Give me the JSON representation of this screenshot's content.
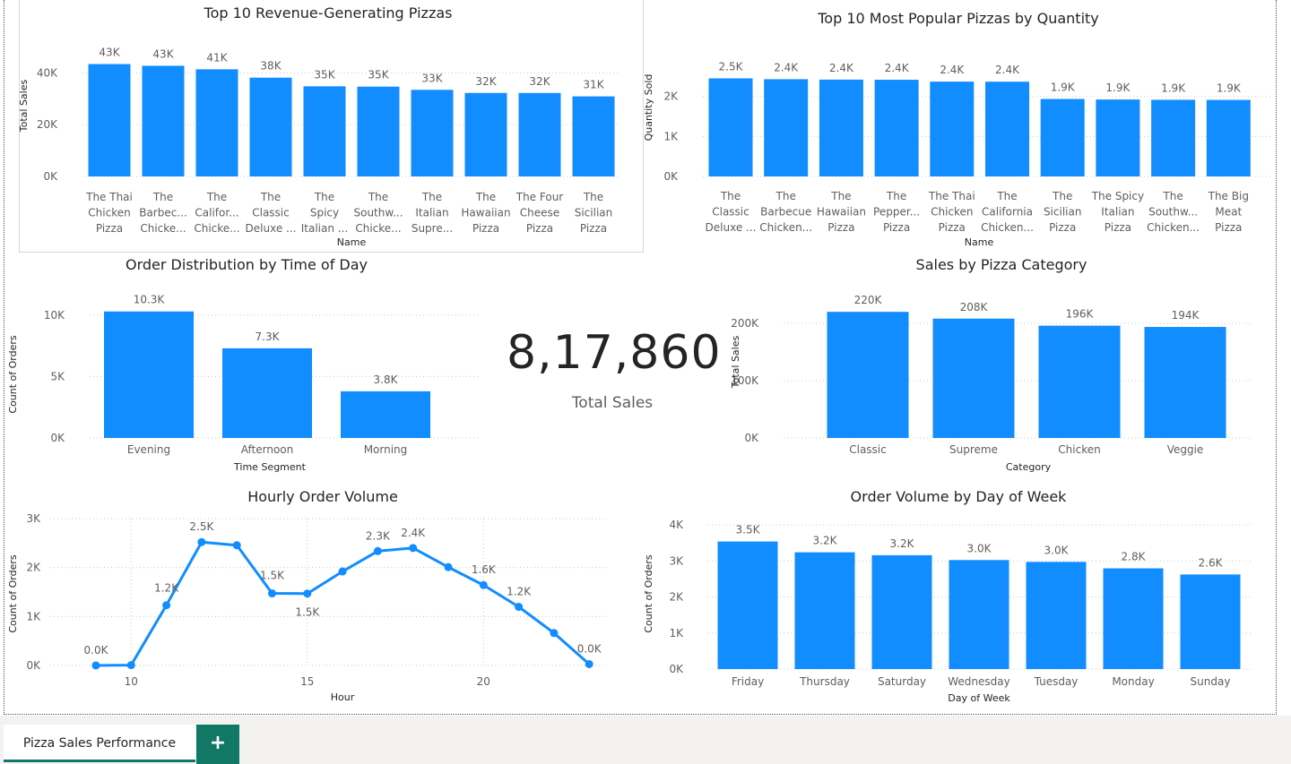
{
  "kpi": {
    "value": "8,17,860",
    "label": "Total Sales"
  },
  "tabs": {
    "active_label": "Pizza Sales Performance",
    "add_label": "+"
  },
  "colors": {
    "bar": "#118DFF",
    "tab_accent": "#117865"
  },
  "chart_data": [
    {
      "id": "revenue",
      "type": "bar",
      "title": "Top 10 Revenue-Generating Pizzas",
      "xlabel": "Name",
      "ylabel": "Total Sales",
      "categories": [
        [
          "The Thai",
          "Chicken",
          "Pizza"
        ],
        [
          "The",
          "Barbec...",
          "Chicke..."
        ],
        [
          "The",
          "Califor...",
          "Chicke..."
        ],
        [
          "The",
          "Classic",
          "Deluxe ..."
        ],
        [
          "The",
          "Spicy",
          "Italian ..."
        ],
        [
          "The",
          "Southw...",
          "Chicke..."
        ],
        [
          "The",
          "Italian",
          "Supre..."
        ],
        [
          "The",
          "Hawaiian",
          "Pizza"
        ],
        [
          "The Four",
          "Cheese",
          "Pizza"
        ],
        [
          "The",
          "Sicilian",
          "Pizza"
        ]
      ],
      "values": [
        43434,
        42768,
        41410,
        38180,
        34831,
        34706,
        33477,
        32273,
        32266,
        30940
      ],
      "labels": [
        "43K",
        "43K",
        "41K",
        "38K",
        "35K",
        "35K",
        "33K",
        "32K",
        "32K",
        "31K"
      ],
      "ylim": [
        0,
        45000
      ],
      "yticks": [
        0,
        20000,
        40000
      ],
      "yticklabels": [
        "0K",
        "20K",
        "40K"
      ]
    },
    {
      "id": "quantity",
      "type": "bar",
      "title": "Top 10 Most Popular Pizzas by Quantity",
      "xlabel": "Name",
      "ylabel": "Quantity Sold",
      "categories": [
        [
          "The",
          "Classic",
          "Deluxe ..."
        ],
        [
          "The",
          "Barbecue",
          "Chicken..."
        ],
        [
          "The",
          "Hawaiian",
          "Pizza"
        ],
        [
          "The",
          "Pepper...",
          "Pizza"
        ],
        [
          "The Thai",
          "Chicken",
          "Pizza"
        ],
        [
          "The",
          "California",
          "Chicken..."
        ],
        [
          "The",
          "Sicilian",
          "Pizza"
        ],
        [
          "The Spicy",
          "Italian",
          "Pizza"
        ],
        [
          "The",
          "Southw...",
          "Chicken..."
        ],
        [
          "The Big",
          "Meat",
          "Pizza"
        ]
      ],
      "values": [
        2453,
        2432,
        2422,
        2418,
        2371,
        2370,
        1938,
        1924,
        1917,
        1914
      ],
      "labels": [
        "2.5K",
        "2.4K",
        "2.4K",
        "2.4K",
        "2.4K",
        "2.4K",
        "1.9K",
        "1.9K",
        "1.9K",
        "1.9K"
      ],
      "ylim": [
        0,
        2800
      ],
      "yticks": [
        0,
        1000,
        2000
      ],
      "yticklabels": [
        "0K",
        "1K",
        "2K"
      ]
    },
    {
      "id": "timeofday",
      "type": "bar",
      "title": "Order Distribution by Time of Day",
      "xlabel": "Time Segment",
      "ylabel": "Count of Orders",
      "categories": [
        [
          "Evening"
        ],
        [
          "Afternoon"
        ],
        [
          "Morning"
        ]
      ],
      "values": [
        10300,
        7300,
        3800
      ],
      "labels": [
        "10.3K",
        "7.3K",
        "3.8K"
      ],
      "ylim": [
        0,
        10500
      ],
      "yticks": [
        0,
        5000,
        10000
      ],
      "yticklabels": [
        "0K",
        "5K",
        "10K"
      ]
    },
    {
      "id": "category",
      "type": "bar",
      "title": "Sales by Pizza Category",
      "xlabel": "Category",
      "ylabel": "Total Sales",
      "categories": [
        [
          "Classic"
        ],
        [
          "Supreme"
        ],
        [
          "Chicken"
        ],
        [
          "Veggie"
        ]
      ],
      "values": [
        220053,
        208197,
        195920,
        193690
      ],
      "labels": [
        "220K",
        "208K",
        "196K",
        "194K"
      ],
      "ylim": [
        0,
        225000
      ],
      "yticks": [
        0,
        100000,
        200000
      ],
      "yticklabels": [
        "0K",
        "100K",
        "200K"
      ]
    },
    {
      "id": "hourly",
      "type": "line",
      "title": "Hourly Order Volume",
      "xlabel": "Hour",
      "ylabel": "Count of Orders",
      "x": [
        9,
        10,
        11,
        12,
        13,
        14,
        15,
        16,
        17,
        18,
        19,
        20,
        21,
        22,
        23
      ],
      "y": [
        1,
        8,
        1231,
        2520,
        2455,
        1472,
        1468,
        1920,
        2336,
        2399,
        2009,
        1642,
        1198,
        663,
        28
      ],
      "point_labels": [
        {
          "x": 9,
          "text": "0.0K"
        },
        {
          "x": 11,
          "text": "1.2K"
        },
        {
          "x": 12,
          "text": "2.5K"
        },
        {
          "x": 14,
          "text": "1.5K"
        },
        {
          "x": 15,
          "text": "1.5K"
        },
        {
          "x": 17,
          "text": "2.3K"
        },
        {
          "x": 18,
          "text": "2.4K"
        },
        {
          "x": 20,
          "text": "1.6K"
        },
        {
          "x": 21,
          "text": "1.2K"
        },
        {
          "x": 23,
          "text": "0.0K"
        }
      ],
      "xlim": [
        8.3,
        23.5
      ],
      "xticks": [
        10,
        15,
        20
      ],
      "ylim": [
        0,
        3000
      ],
      "yticks": [
        0,
        1000,
        2000,
        3000
      ],
      "yticklabels": [
        "0K",
        "1K",
        "2K",
        "3K"
      ]
    },
    {
      "id": "dayofweek",
      "type": "bar",
      "title": "Order Volume by Day of Week",
      "xlabel": "Day of Week",
      "ylabel": "Count of Orders",
      "categories": [
        [
          "Friday"
        ],
        [
          "Thursday"
        ],
        [
          "Saturday"
        ],
        [
          "Wednesday"
        ],
        [
          "Tuesday"
        ],
        [
          "Monday"
        ],
        [
          "Sunday"
        ]
      ],
      "values": [
        3538,
        3239,
        3158,
        3024,
        2973,
        2794,
        2624
      ],
      "labels": [
        "3.5K",
        "3.2K",
        "3.2K",
        "3.0K",
        "3.0K",
        "2.8K",
        "2.6K"
      ],
      "ylim": [
        0,
        4000
      ],
      "yticks": [
        0,
        1000,
        2000,
        3000,
        4000
      ],
      "yticklabels": [
        "0K",
        "1K",
        "2K",
        "3K",
        "4K"
      ]
    }
  ]
}
